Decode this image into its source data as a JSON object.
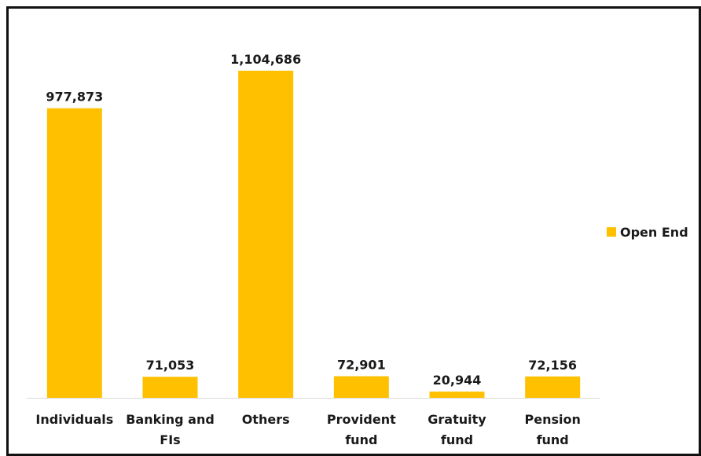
{
  "chart_data": {
    "type": "bar",
    "categories": [
      [
        "Individuals"
      ],
      [
        "Banking and",
        "FIs"
      ],
      [
        "Others"
      ],
      [
        "Provident",
        "fund"
      ],
      [
        "Gratuity",
        "fund"
      ],
      [
        "Pension",
        "fund"
      ]
    ],
    "series": [
      {
        "name": "Open End",
        "values": [
          977873,
          71053,
          1104686,
          72901,
          20944,
          72156
        ],
        "labels": [
          "977,873",
          "71,053",
          "1,104,686",
          "72,901",
          "20,944",
          "72,156"
        ],
        "color": "#FFC000"
      }
    ],
    "ylim": [
      0,
      1200000
    ],
    "grid": false,
    "legend": "right",
    "title": "",
    "xlabel": "",
    "ylabel": ""
  }
}
